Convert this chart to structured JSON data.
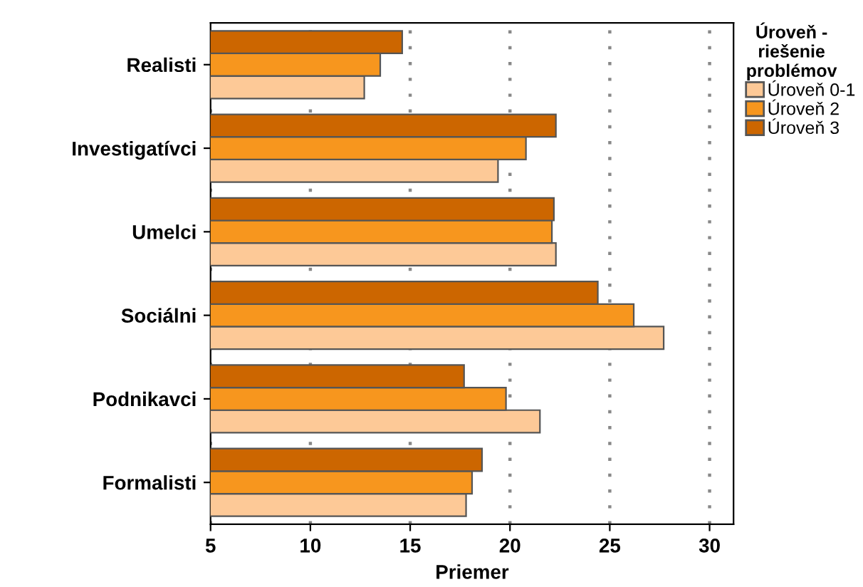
{
  "chart_data": {
    "type": "bar",
    "orientation": "horizontal",
    "xlabel": "Priemer",
    "legend_title": "Úroveň -\nriešenie\nproblémov",
    "categories": [
      "Realisti",
      "Investigatívci",
      "Umelci",
      "Sociálni",
      "Podnikavci",
      "Formalisti"
    ],
    "series": [
      {
        "name": "Úroveň 0-1",
        "color": "#fdc997",
        "values": [
          12.7,
          19.4,
          22.3,
          27.7,
          21.5,
          17.8
        ]
      },
      {
        "name": "Úroveň 2",
        "color": "#f7961e",
        "values": [
          13.5,
          20.8,
          22.1,
          26.2,
          19.8,
          18.1
        ]
      },
      {
        "name": "Úroveň 3",
        "color": "#cc6600",
        "values": [
          14.6,
          22.3,
          22.2,
          24.4,
          17.7,
          18.6
        ]
      }
    ],
    "xlim": [
      5,
      31.2
    ],
    "xticks": [
      5,
      10,
      15,
      20,
      25,
      30
    ],
    "grid": "x",
    "legend": "top right"
  }
}
